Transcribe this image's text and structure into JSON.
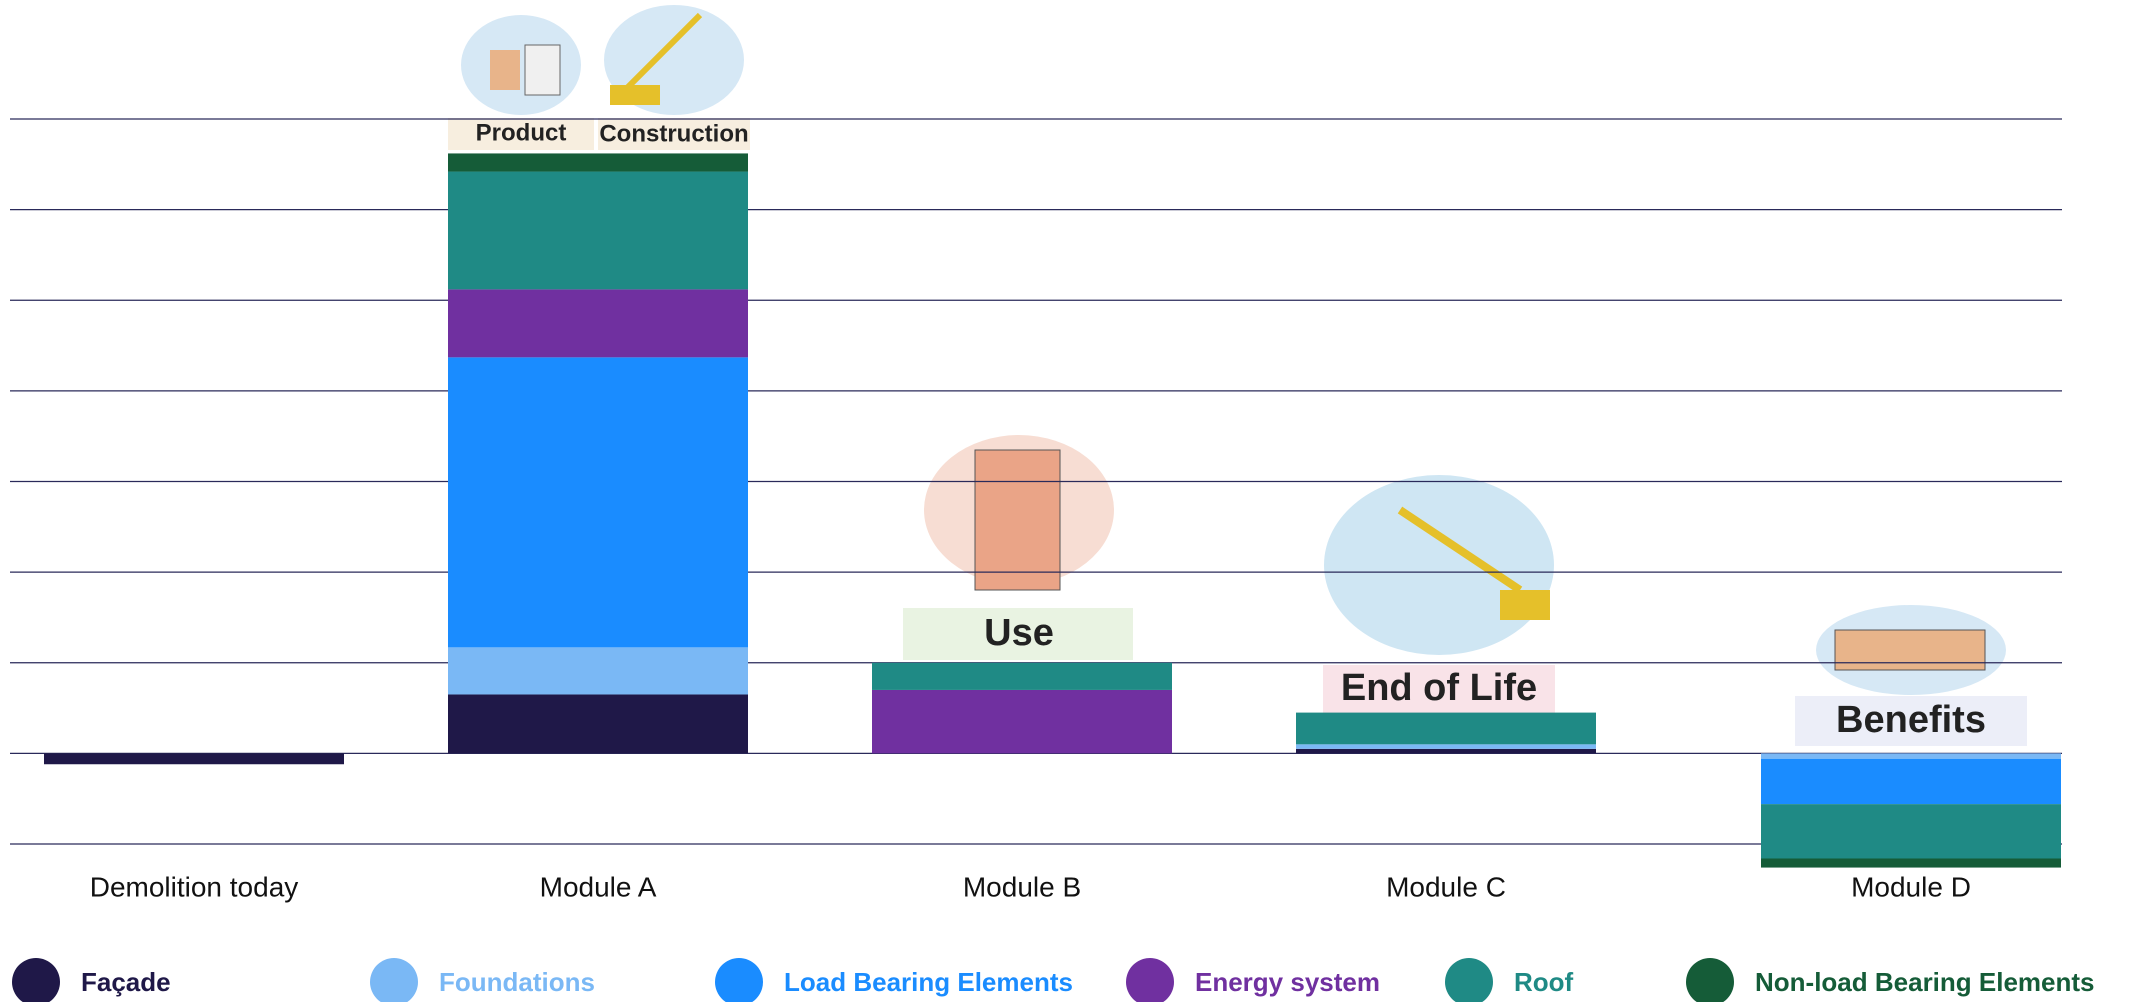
{
  "chart_data": {
    "type": "stacked-bar",
    "categories": [
      "Demolition today",
      "Module A",
      "Module B",
      "Module C",
      "Module D"
    ],
    "series": [
      {
        "name": "Façade",
        "color": "#1f1848",
        "values": [
          -0.12,
          0.65,
          0,
          0.05,
          0
        ]
      },
      {
        "name": "Foundations",
        "color": "#7ab8f5",
        "values": [
          0,
          0.52,
          0,
          0.05,
          -0.06
        ]
      },
      {
        "name": "Load Bearing Elements",
        "color": "#1a8cff",
        "values": [
          0,
          3.2,
          0,
          0,
          -0.5
        ]
      },
      {
        "name": "Energy system",
        "color": "#7030a0",
        "values": [
          0,
          0.75,
          0.7,
          0,
          0
        ]
      },
      {
        "name": "Roof",
        "color": "#1f8a85",
        "values": [
          0,
          1.3,
          0.3,
          0.35,
          -0.6
        ]
      },
      {
        "name": "Non-load Bearing Elements",
        "color": "#155c38",
        "values": [
          0,
          0.2,
          0,
          0,
          -0.1
        ]
      }
    ],
    "ylim": [
      -1,
      7
    ],
    "yticks": [
      -1,
      0,
      1,
      2,
      3,
      4,
      5,
      6,
      7
    ],
    "grid": true,
    "annotations": [
      "Product",
      "Construction",
      "Use",
      "End of Life",
      "Benefits"
    ]
  }
}
